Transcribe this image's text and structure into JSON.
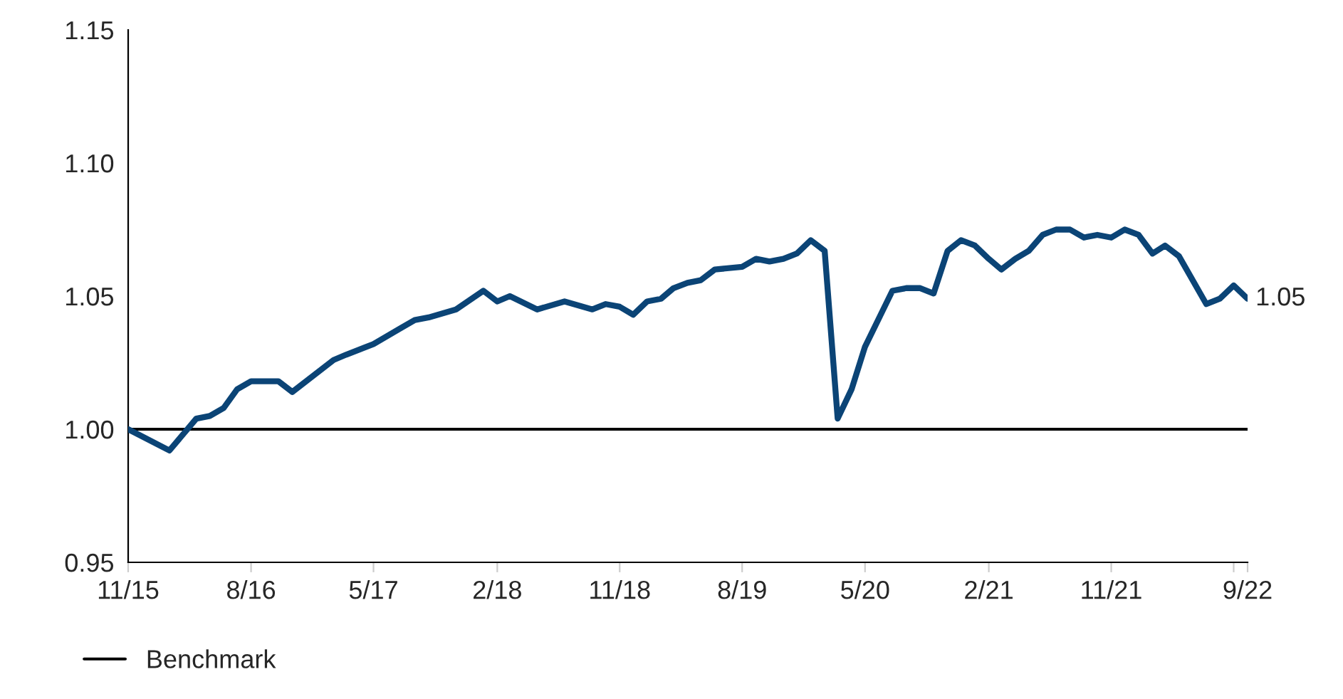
{
  "chart_data": {
    "type": "line",
    "xlim": [
      "2015-11",
      "2022-09"
    ],
    "xticks": [
      {
        "value": "2015-11",
        "label": "11/15"
      },
      {
        "value": "2016-08",
        "label": "8/16"
      },
      {
        "value": "2017-05",
        "label": "5/17"
      },
      {
        "value": "2018-02",
        "label": "2/18"
      },
      {
        "value": "2018-11",
        "label": "11/18"
      },
      {
        "value": "2019-08",
        "label": "8/19"
      },
      {
        "value": "2020-05",
        "label": "5/20"
      },
      {
        "value": "2021-02",
        "label": "2/21"
      },
      {
        "value": "2021-11",
        "label": "11/21"
      },
      {
        "value": "2022-08",
        "label": null
      },
      {
        "value": "2022-09",
        "label": "9/22"
      }
    ],
    "ylim": [
      0.95,
      1.15
    ],
    "yticks": [
      {
        "value": 0.95,
        "label": "0.95"
      },
      {
        "value": 1.0,
        "label": "1.00"
      },
      {
        "value": 1.05,
        "label": "1.05"
      },
      {
        "value": 1.1,
        "label": "1.10"
      },
      {
        "value": 1.15,
        "label": "1.15"
      }
    ],
    "grid": false,
    "legend": "bottom",
    "series": [
      {
        "color": "#0b4476",
        "x": [
          "2015-11",
          "2016-02",
          "2016-04",
          "2016-05",
          "2016-06",
          "2016-07",
          "2016-08",
          "2016-10",
          "2016-11",
          "2017-02",
          "2017-03",
          "2017-05",
          "2017-07",
          "2017-08",
          "2017-09",
          "2017-11",
          "2018-01",
          "2018-02",
          "2018-03",
          "2018-05",
          "2018-07",
          "2018-09",
          "2018-10",
          "2018-11",
          "2018-12",
          "2019-01",
          "2019-02",
          "2019-03",
          "2019-04",
          "2019-05",
          "2019-06",
          "2019-08",
          "2019-09",
          "2019-10",
          "2019-11",
          "2019-12",
          "2020-01",
          "2020-02",
          "2020-03",
          "2020-04",
          "2020-05",
          "2020-07",
          "2020-08",
          "2020-09",
          "2020-10",
          "2020-11",
          "2020-12",
          "2021-01",
          "2021-02",
          "2021-03",
          "2021-04",
          "2021-05",
          "2021-06",
          "2021-07",
          "2021-08",
          "2021-09",
          "2021-10",
          "2021-11",
          "2021-12",
          "2022-01",
          "2022-02",
          "2022-03",
          "2022-04",
          "2022-06",
          "2022-07",
          "2022-08",
          "2022-09"
        ],
        "values": [
          1.0,
          0.992,
          1.004,
          1.005,
          1.008,
          1.015,
          1.018,
          1.018,
          1.014,
          1.026,
          1.028,
          1.032,
          1.038,
          1.041,
          1.042,
          1.045,
          1.052,
          1.048,
          1.05,
          1.045,
          1.048,
          1.045,
          1.047,
          1.046,
          1.043,
          1.048,
          1.049,
          1.053,
          1.055,
          1.056,
          1.06,
          1.061,
          1.064,
          1.063,
          1.064,
          1.066,
          1.071,
          1.067,
          1.004,
          1.015,
          1.031,
          1.052,
          1.053,
          1.053,
          1.051,
          1.067,
          1.071,
          1.069,
          1.064,
          1.06,
          1.064,
          1.067,
          1.073,
          1.075,
          1.075,
          1.072,
          1.073,
          1.072,
          1.075,
          1.073,
          1.066,
          1.069,
          1.065,
          1.047,
          1.049,
          1.054,
          1.049
        ]
      },
      {
        "name": "Benchmark",
        "color": "#000000",
        "x": [
          "2015-11",
          "2022-09"
        ],
        "values": [
          1.0,
          1.0
        ]
      }
    ],
    "annotations": [
      {
        "text": "1.05",
        "x": "2022-09",
        "y": 1.049
      }
    ]
  }
}
